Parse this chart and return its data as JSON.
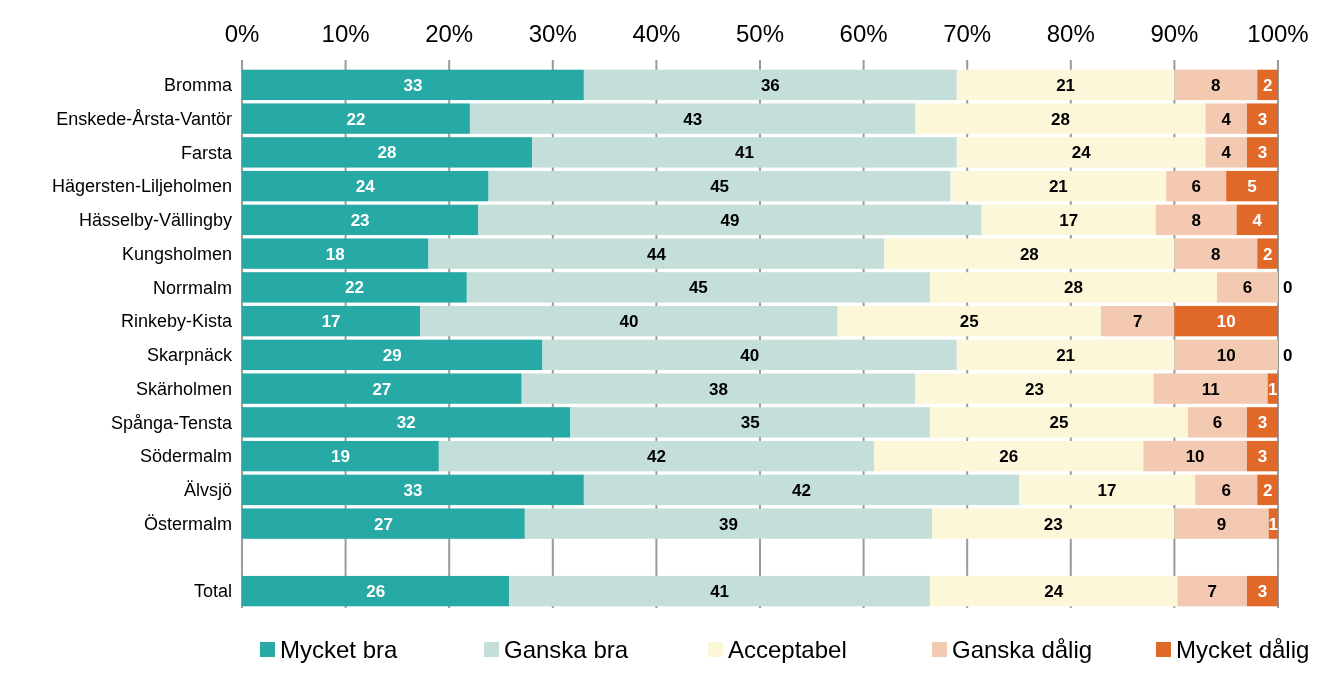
{
  "chart_data": {
    "type": "bar",
    "orientation": "horizontal",
    "stacked": true,
    "categories": [
      "Bromma",
      "Enskede-Årsta-Vantör",
      "Farsta",
      "Hägersten-Liljeholmen",
      "Hässelby-Vällingby",
      "Kungsholmen",
      "Norrmalm",
      "Rinkeby-Kista",
      "Skarpnäck",
      "Skärholmen",
      "Spånga-Tensta",
      "Södermalm",
      "Älvsjö",
      "Östermalm",
      null,
      "Total"
    ],
    "series": [
      {
        "name": "Mycket bra",
        "color": "#27aaa5",
        "values": [
          33,
          22,
          28,
          23.8,
          22.8,
          18,
          21.7,
          17.2,
          29,
          27,
          31.7,
          19,
          33,
          27.3,
          null,
          25.8
        ],
        "value_labels": [
          "33",
          "22",
          "28",
          "24",
          "23",
          "18",
          "22",
          "17",
          "29",
          "27",
          "32",
          "19",
          "33",
          "27",
          null,
          "26"
        ]
      },
      {
        "name": "Ganska bra",
        "color": "#c4dfda",
        "values": [
          36,
          43,
          41,
          44.6,
          48.6,
          44,
          44.7,
          40.3,
          40,
          38,
          34.7,
          42,
          42,
          39.3,
          null,
          40.6
        ],
        "value_labels": [
          "36",
          "43",
          "41",
          "45",
          "49",
          "44",
          "45",
          "40",
          "40",
          "38",
          "35",
          "42",
          "42",
          "39",
          null,
          "41"
        ]
      },
      {
        "name": "Acceptabel",
        "color": "#fdf7da",
        "values": [
          21,
          28,
          24,
          20.8,
          16.8,
          28,
          27.7,
          25.4,
          21,
          23,
          24.9,
          26,
          17,
          23.4,
          null,
          23.9
        ],
        "value_labels": [
          "21",
          "28",
          "24",
          "21",
          "17",
          "28",
          "28",
          "25",
          "21",
          "23",
          "25",
          "26",
          "17",
          "23",
          null,
          "24"
        ]
      },
      {
        "name": "Ganska dålig",
        "color": "#f3cab1",
        "values": [
          8,
          4,
          4,
          5.8,
          7.8,
          8,
          5.9,
          7.1,
          10,
          11,
          5.7,
          10,
          6,
          9.1,
          null,
          6.7
        ],
        "value_labels": [
          "8",
          "4",
          "4",
          "6",
          "8",
          "8",
          "6",
          "7",
          "10",
          "11",
          "6",
          "10",
          "6",
          "9",
          null,
          "7"
        ]
      },
      {
        "name": "Mycket dålig",
        "color": "#e0692a",
        "values": [
          2,
          3,
          3,
          5,
          4,
          2,
          0,
          10,
          0,
          1,
          3,
          3,
          2,
          0.9,
          null,
          3
        ],
        "value_labels": [
          "2",
          "3",
          "3",
          "5",
          "4",
          "2",
          "0",
          "10",
          "0",
          "1",
          "3",
          "3",
          "2",
          "1",
          null,
          "3"
        ]
      }
    ],
    "xlim": [
      0,
      100
    ],
    "xticks": [
      {
        "value": 0,
        "label": "0%"
      },
      {
        "value": 10,
        "label": "10%"
      },
      {
        "value": 20,
        "label": "20%"
      },
      {
        "value": 30,
        "label": "30%"
      },
      {
        "value": 40,
        "label": "40%"
      },
      {
        "value": 50,
        "label": "50%"
      },
      {
        "value": 60,
        "label": "60%"
      },
      {
        "value": 70,
        "label": "70%"
      },
      {
        "value": 80,
        "label": "80%"
      },
      {
        "value": 90,
        "label": "90%"
      },
      {
        "value": 100,
        "label": "100%"
      }
    ],
    "grid": "x",
    "legend": "bottom"
  }
}
